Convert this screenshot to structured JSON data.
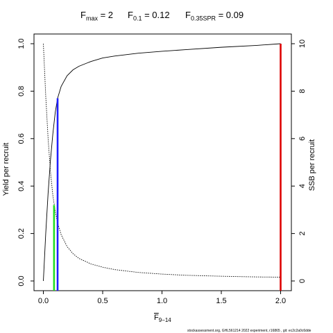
{
  "title": {
    "fmax": {
      "main": "F",
      "sub": "max",
      "value": " = 2"
    },
    "f01": {
      "main": "F",
      "sub": "0.1",
      "value": " = 0.12"
    },
    "fspr": {
      "main": "F",
      "sub": "0.35SPR",
      "value": " = 0.09"
    }
  },
  "footer": "stockassessment.org,  GHL561214  2022  experiment,  r16865  ,  git:  ec2c2a0c6dde",
  "chart_data": {
    "type": "line",
    "xlabel": {
      "main": "F",
      "sub": "9−14",
      "overline": true
    },
    "ylabel_left": "Yield per recruit",
    "ylabel_right": "SSB per recruit",
    "xlim": [
      0,
      2
    ],
    "ylim_left": [
      0,
      1
    ],
    "ylim_right": [
      0,
      10
    ],
    "x_ticks": [
      0,
      0.5,
      1,
      1.5,
      2
    ],
    "x_tick_labels": [
      "0.0",
      "0.5",
      "1.0",
      "1.5",
      "2.0"
    ],
    "y_left_ticks": [
      0,
      0.2,
      0.4,
      0.6,
      0.8,
      1
    ],
    "y_left_tick_labels": [
      "0.0",
      "0.2",
      "0.4",
      "0.6",
      "0.8",
      "1.0"
    ],
    "y_right_ticks": [
      0,
      2,
      4,
      6,
      8,
      10
    ],
    "y_right_tick_labels": [
      "0",
      "2",
      "4",
      "6",
      "8",
      "10"
    ],
    "series": [
      {
        "axis": "left",
        "style": "solid",
        "color": "#000000",
        "x": [
          0,
          0.02,
          0.04,
          0.06,
          0.08,
          0.1,
          0.12,
          0.15,
          0.2,
          0.25,
          0.3,
          0.4,
          0.5,
          0.6,
          0.8,
          1.0,
          1.2,
          1.5,
          1.8,
          2.0
        ],
        "y": [
          0.0,
          0.2,
          0.37,
          0.51,
          0.62,
          0.71,
          0.77,
          0.82,
          0.865,
          0.89,
          0.905,
          0.925,
          0.94,
          0.948,
          0.96,
          0.968,
          0.975,
          0.985,
          0.993,
          1.0
        ]
      },
      {
        "axis": "right",
        "style": "dotted",
        "color": "#000000",
        "x": [
          0,
          0.02,
          0.04,
          0.06,
          0.08,
          0.1,
          0.12,
          0.15,
          0.2,
          0.25,
          0.3,
          0.4,
          0.5,
          0.6,
          0.8,
          1.0,
          1.2,
          1.5,
          1.8,
          2.0
        ],
        "y": [
          10.0,
          7.8,
          6.0,
          4.6,
          3.6,
          2.95,
          2.45,
          1.95,
          1.45,
          1.15,
          0.95,
          0.72,
          0.58,
          0.48,
          0.36,
          0.29,
          0.24,
          0.2,
          0.17,
          0.16
        ]
      }
    ],
    "reference_lines": [
      {
        "name": "Fmax",
        "x": 2.0,
        "y_top": 1.0,
        "color": "#dd0000"
      },
      {
        "name": "F0.1",
        "x": 0.12,
        "y_top": 0.77,
        "color": "#1f1fff"
      },
      {
        "name": "F0.35SPR",
        "x": 0.09,
        "y_top": 0.32,
        "color": "#22dd22"
      }
    ]
  }
}
